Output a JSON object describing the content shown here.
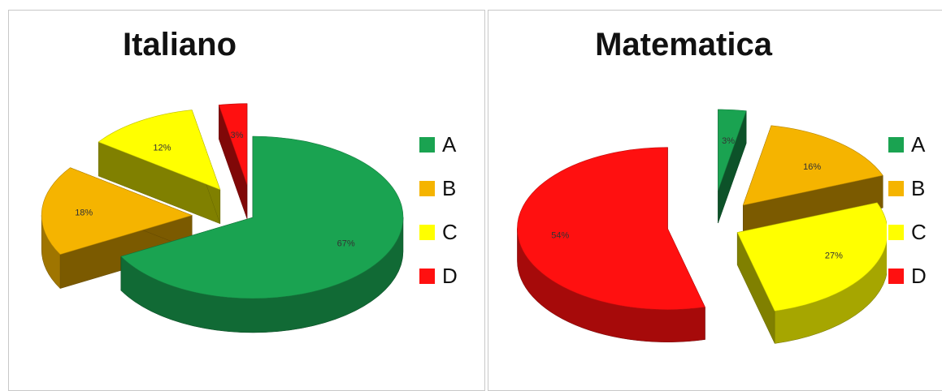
{
  "chart_data": [
    {
      "type": "pie",
      "title": "Italiano",
      "categories": [
        "A",
        "B",
        "C",
        "D"
      ],
      "values": [
        67,
        18,
        12,
        3
      ],
      "labels": [
        "67%",
        "18%",
        "12%",
        "3%"
      ],
      "colors": [
        "#1aa351",
        "#f5b400",
        "#ffff00",
        "#ff1010"
      ],
      "legend": "right",
      "exploded": true,
      "three_d": true
    },
    {
      "type": "pie",
      "title": "Matematica",
      "categories": [
        "A",
        "B",
        "C",
        "D"
      ],
      "values": [
        3,
        16,
        27,
        54
      ],
      "labels": [
        "3%",
        "16%",
        "27%",
        "54%"
      ],
      "colors": [
        "#1aa351",
        "#f5b400",
        "#ffff00",
        "#ff1010"
      ],
      "legend": "right",
      "exploded": true,
      "three_d": true
    }
  ]
}
